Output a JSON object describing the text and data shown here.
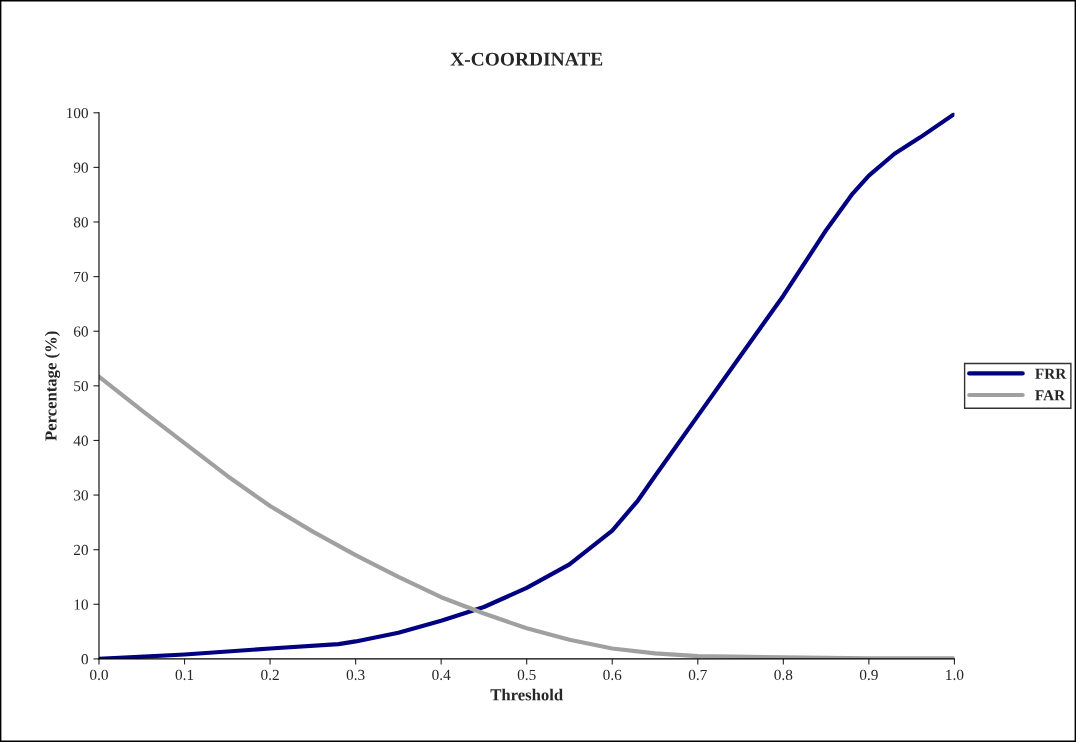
{
  "chart_data": {
    "type": "line",
    "title": "X-COORDINATE",
    "xlabel": "Threshold",
    "ylabel": "Percentage (%)",
    "xlim": [
      0,
      1
    ],
    "ylim": [
      0,
      100
    ],
    "xticks": [
      {
        "value": 0,
        "label": "0.0"
      },
      {
        "value": 0.1,
        "label": "0.1"
      },
      {
        "value": 0.2,
        "label": "0.2"
      },
      {
        "value": 0.3,
        "label": "0.3"
      },
      {
        "value": 0.4,
        "label": "0.4"
      },
      {
        "value": 0.5,
        "label": "0.5"
      },
      {
        "value": 0.6,
        "label": "0.6"
      },
      {
        "value": 0.7,
        "label": "0.7"
      },
      {
        "value": 0.8,
        "label": "0.8"
      },
      {
        "value": 0.9,
        "label": "0.9"
      },
      {
        "value": 1,
        "label": "1.0"
      }
    ],
    "yticks": [
      0,
      10,
      20,
      30,
      40,
      50,
      60,
      70,
      80,
      90,
      100
    ],
    "grid": false,
    "legend": "right",
    "marker": "none",
    "line_style": "solid",
    "series": [
      {
        "name": "FRR",
        "color": "#000080",
        "x": [
          0,
          0.1,
          0.2,
          0.28,
          0.3,
          0.35,
          0.4,
          0.45,
          0.5,
          0.55,
          0.6,
          0.63,
          0.65,
          0.7,
          0.75,
          0.8,
          0.85,
          0.88,
          0.9,
          0.93,
          0.96,
          1.0
        ],
        "values": [
          0,
          0.8,
          1.9,
          2.7,
          3.2,
          4.8,
          7,
          9.5,
          13,
          17.3,
          23.5,
          29,
          33.5,
          44.5,
          55.5,
          66.5,
          78.5,
          85,
          88.5,
          92.5,
          95.5,
          99.8
        ]
      },
      {
        "name": "FAR",
        "color": "#a0a0a0",
        "x": [
          0,
          0.05,
          0.1,
          0.15,
          0.2,
          0.25,
          0.3,
          0.35,
          0.4,
          0.45,
          0.5,
          0.55,
          0.6,
          0.65,
          0.7,
          0.8,
          0.9,
          1.0
        ],
        "values": [
          51.7,
          45.5,
          39.5,
          33.5,
          28,
          23.3,
          19,
          15,
          11.3,
          8.3,
          5.6,
          3.5,
          1.9,
          1,
          0.5,
          0.3,
          0.1,
          0.1
        ]
      }
    ]
  }
}
